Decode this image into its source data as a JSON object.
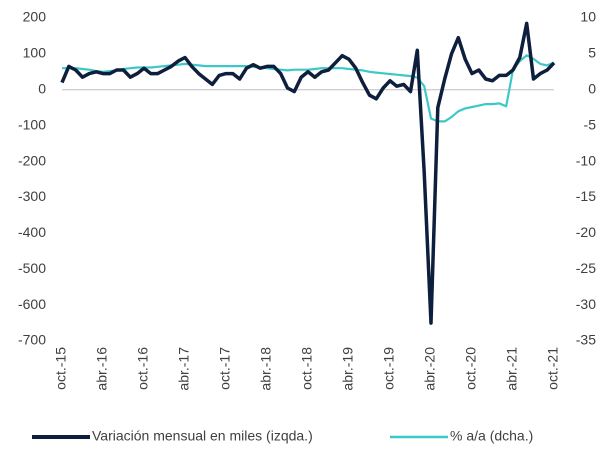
{
  "chart_data": {
    "type": "line",
    "categories": [
      "oct.-15",
      null,
      null,
      null,
      null,
      null,
      "abr.-16",
      null,
      null,
      null,
      null,
      null,
      "oct.-16",
      null,
      null,
      null,
      null,
      null,
      "abr.-17",
      null,
      null,
      null,
      null,
      null,
      "oct.-17",
      null,
      null,
      null,
      null,
      null,
      "abr.-18",
      null,
      null,
      null,
      null,
      null,
      "oct.-18",
      null,
      null,
      null,
      null,
      null,
      "abr.-19",
      null,
      null,
      null,
      null,
      null,
      "oct.-19",
      null,
      null,
      null,
      null,
      null,
      "abr.-20",
      null,
      null,
      null,
      null,
      null,
      "oct.-20",
      null,
      null,
      null,
      null,
      null,
      "abr.-21",
      null,
      null,
      null,
      null,
      null,
      "oct.-21"
    ],
    "series": [
      {
        "name": "Variación mensual en miles (izqda.)",
        "color": "#0d1f3c",
        "axis": "y",
        "values": [
          20,
          65,
          55,
          35,
          45,
          50,
          45,
          45,
          55,
          55,
          35,
          45,
          60,
          45,
          45,
          55,
          65,
          80,
          90,
          65,
          45,
          30,
          15,
          40,
          45,
          45,
          30,
          60,
          70,
          60,
          65,
          65,
          45,
          5,
          -5,
          35,
          50,
          35,
          50,
          55,
          75,
          95,
          85,
          60,
          20,
          -15,
          -25,
          5,
          25,
          10,
          15,
          -5,
          110,
          -230,
          -650,
          -50,
          30,
          100,
          145,
          85,
          45,
          55,
          30,
          25,
          40,
          40,
          55,
          90,
          185,
          30,
          45,
          55,
          75
        ]
      },
      {
        "name": "% a/a (dcha.)",
        "color": "#3cc8c8",
        "axis": "y2",
        "values": [
          3.0,
          3.0,
          3.0,
          2.9,
          2.8,
          2.6,
          2.5,
          2.6,
          2.7,
          2.9,
          3.0,
          3.1,
          3.1,
          3.1,
          3.2,
          3.3,
          3.4,
          3.5,
          3.6,
          3.5,
          3.4,
          3.3,
          3.3,
          3.3,
          3.3,
          3.3,
          3.3,
          3.3,
          3.2,
          3.1,
          3.0,
          2.9,
          2.8,
          2.7,
          2.8,
          2.8,
          2.8,
          2.9,
          3.0,
          3.0,
          3.0,
          3.0,
          2.9,
          2.8,
          2.7,
          2.5,
          2.4,
          2.3,
          2.2,
          2.1,
          2.0,
          1.9,
          1.7,
          0.5,
          -4.0,
          -4.4,
          -4.4,
          -3.8,
          -3.0,
          -2.6,
          -2.4,
          -2.2,
          -2.0,
          -2.0,
          -1.9,
          -2.3,
          2.8,
          4.0,
          4.8,
          4.3,
          3.6,
          3.4,
          3.8
        ]
      }
    ],
    "ylim": [
      -700,
      200
    ],
    "yticks": [
      200,
      100,
      0,
      -100,
      -200,
      -300,
      -400,
      -500,
      -600,
      -700
    ],
    "y2lim": [
      -35,
      10
    ],
    "y2ticks": [
      10,
      5,
      0,
      -5,
      -10,
      -15,
      -20,
      -25,
      -30,
      -35
    ]
  }
}
